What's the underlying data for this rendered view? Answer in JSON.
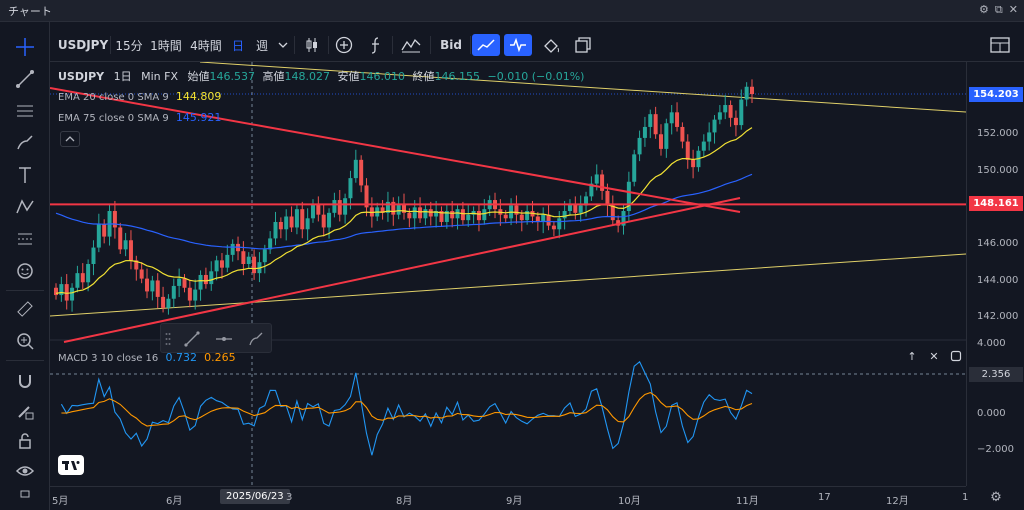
{
  "window": {
    "title": "チャート",
    "controls": [
      "⚙",
      "⧉",
      "✕"
    ]
  },
  "toolbar": {
    "symbol": "USDJPY",
    "intervals": [
      "15分",
      "1時間",
      "4時間"
    ],
    "period_icon": "日",
    "period": "週",
    "bid_label": "Bid"
  },
  "legend": {
    "symbol": "USDJPY",
    "timeframe": "1日",
    "source": "Min FX",
    "open_label": "始値",
    "open": "146.537",
    "high_label": "高値",
    "high": "148.027",
    "low_label": "安値",
    "low": "146.010",
    "close_label": "終値",
    "close": "146.155",
    "change": "−0.010 (−0.01%)"
  },
  "indicators": {
    "ema20": {
      "label": "EMA 20 close 0 SMA 9",
      "value": "144.809",
      "color": "#f2e234"
    },
    "ema75": {
      "label": "EMA 75 close 0 SMA 9",
      "value": "145.921",
      "color": "#2962ff"
    },
    "macd": {
      "label": "MACD 3 10 close 16",
      "macd_value": "0.732",
      "signal_value": "0.265",
      "macd_color": "#2196f3",
      "signal_color": "#ff9800"
    }
  },
  "price_axis": {
    "labels": [
      "152.000",
      "150.000",
      "146.000",
      "144.000",
      "142.000"
    ],
    "current_price": "154.203",
    "hline_price": "148.161",
    "macd_top": "4.000",
    "macd_labels": [
      "2.356",
      "0.000",
      "−2.000"
    ]
  },
  "time_axis": {
    "labels": [
      "5月",
      "6月",
      "8月",
      "9月",
      "10月",
      "11月",
      "17",
      "12月",
      "1"
    ],
    "crosshair_date": "2025/06/23",
    "partial_after_badge": "3"
  },
  "colors": {
    "bg": "#131722",
    "up": "#26a69a",
    "down": "#ef5350",
    "trendline": "#f23645",
    "channel": "#e0d069",
    "accent": "#2962ff"
  },
  "chart_data": {
    "type": "line",
    "title": "",
    "ylim": [
      141,
      156
    ],
    "x": [
      "5月",
      "6月",
      "8月",
      "9月",
      "10月",
      "11月"
    ],
    "series": [
      {
        "name": "EMA 20 close 0 SMA 9",
        "values": [
          143.3,
          144.0,
          147.2,
          146.8,
          147.7,
          152.2
        ]
      },
      {
        "name": "EMA 75 close 0 SMA 9",
        "values": [
          147.8,
          146.8,
          146.6,
          147.0,
          147.4,
          149.8
        ]
      }
    ],
    "annotations": [
      "154.203",
      "148.161"
    ]
  }
}
